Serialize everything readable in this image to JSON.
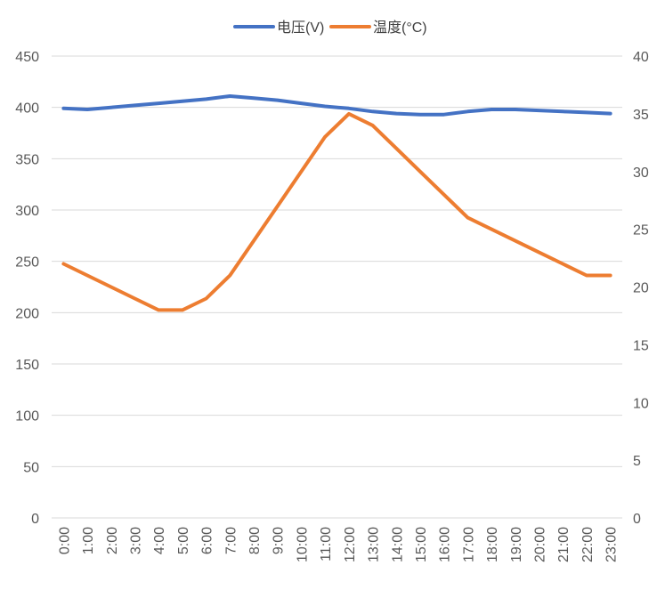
{
  "chart_data": {
    "type": "line",
    "title": "",
    "x": [
      "0:00",
      "1:00",
      "2:00",
      "3:00",
      "4:00",
      "5:00",
      "6:00",
      "7:00",
      "8:00",
      "9:00",
      "10:00",
      "11:00",
      "12:00",
      "13:00",
      "14:00",
      "15:00",
      "16:00",
      "17:00",
      "18:00",
      "19:00",
      "20:00",
      "21:00",
      "22:00",
      "23:00"
    ],
    "series": [
      {
        "name": "电压(V)",
        "axis": "left",
        "color": "#4472C4",
        "values": [
          399,
          398,
          400,
          402,
          404,
          406,
          408,
          411,
          409,
          407,
          404,
          401,
          399,
          396,
          394,
          393,
          393,
          396,
          398,
          398,
          397,
          396,
          395,
          394
        ]
      },
      {
        "name": "温度(°C)",
        "axis": "right",
        "color": "#ED7D31",
        "values": [
          22,
          21,
          20,
          19,
          18,
          18,
          19,
          21,
          24,
          27,
          30,
          33,
          35,
          34,
          32,
          30,
          28,
          26,
          25,
          24,
          23,
          22,
          21,
          21
        ]
      }
    ],
    "y_left": {
      "min": 0,
      "max": 450,
      "ticks": [
        0,
        50,
        100,
        150,
        200,
        250,
        300,
        350,
        400,
        450
      ]
    },
    "y_right": {
      "min": 0,
      "max": 40,
      "ticks": [
        0,
        5,
        10,
        15,
        20,
        25,
        30,
        35,
        40
      ]
    },
    "grid": true,
    "legend_position": "top-center"
  }
}
